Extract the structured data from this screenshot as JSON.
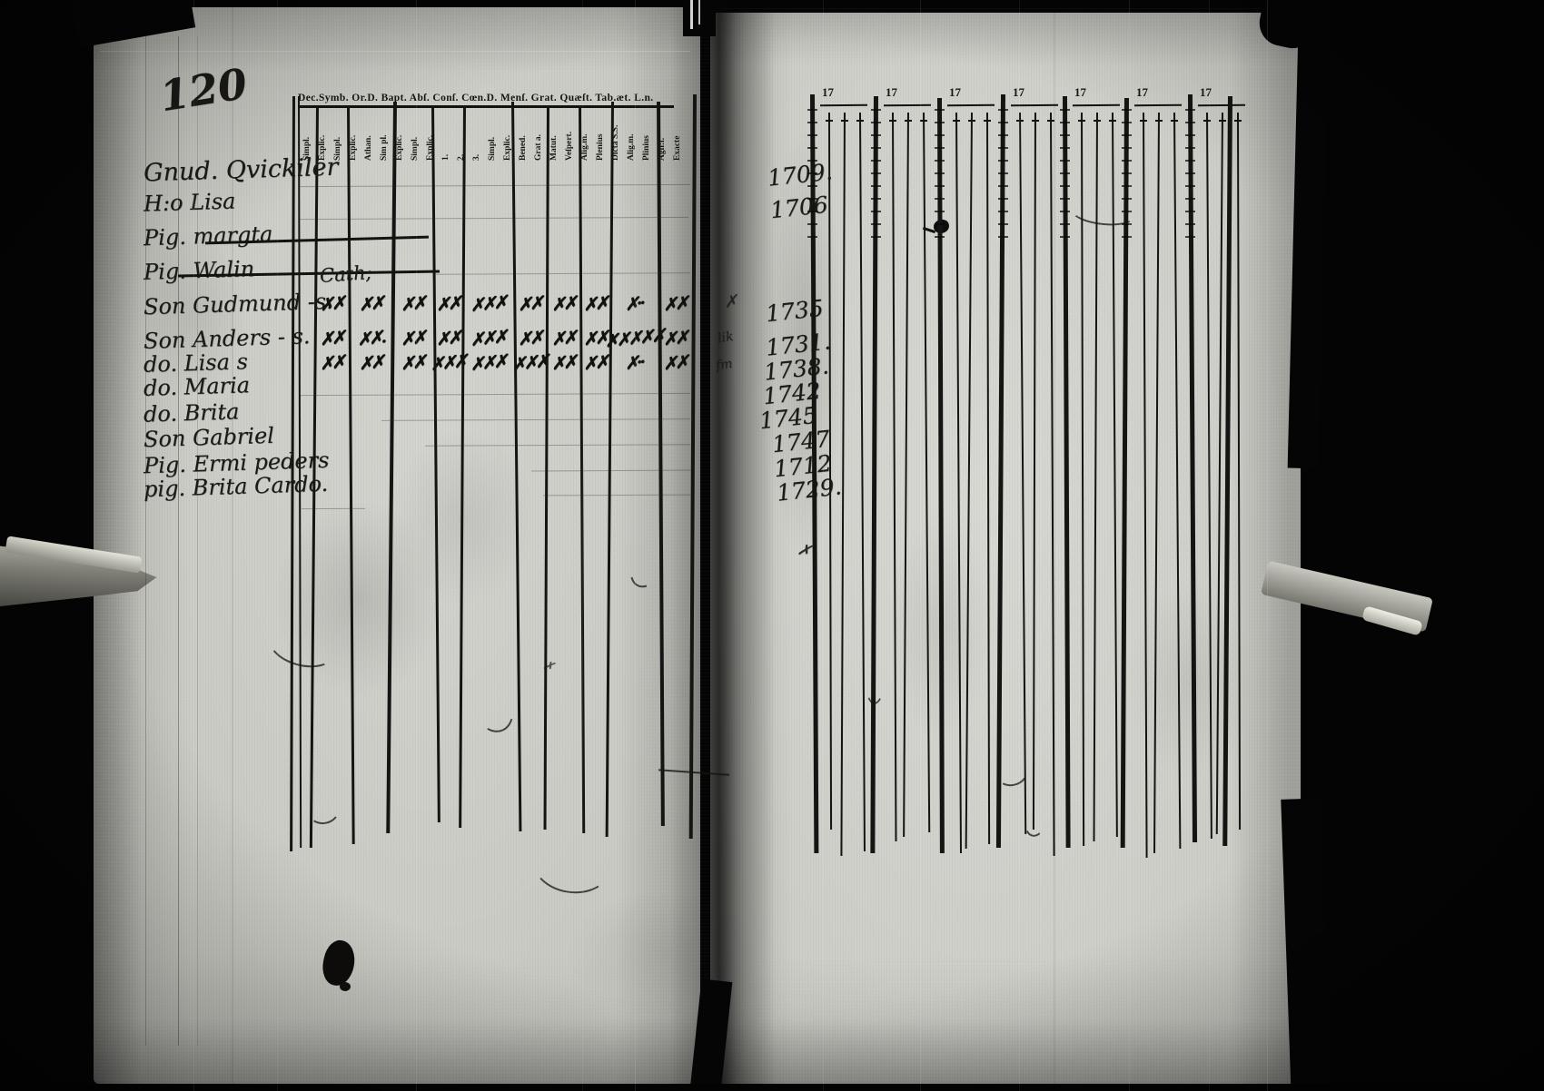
{
  "page_number": "120",
  "left_page": {
    "header_line": "Dec.Symb. Or.D. Bapt. Abſ. Conſ. Cœn.D. Menſ. Grat. Quæſt. Tab.æt. L.n.",
    "header_subs": [
      "Simpl.",
      "Explic.",
      "Simpl.",
      "Explic.",
      "Athan.",
      "Sim pl.",
      "Explic.",
      "Simpl.",
      "Explic.",
      "1.",
      "2.",
      "3.",
      "Simpl.",
      "Explic.",
      "Bened.",
      "Grat a.",
      "Matut.",
      "Veſpert.",
      "Alig.m.",
      "Plenius",
      "Dicta S.S.",
      "Alig.m.",
      "Plinius",
      "Agn:l.",
      "Exacte"
    ],
    "rows": [
      {
        "name": "Gnud. Qvickiler",
        "year": "1709.",
        "struck": false
      },
      {
        "name": "H:o  Lisa",
        "year": "1706",
        "struck": false
      },
      {
        "name": "Pig.  margta",
        "year": "",
        "struck": true
      },
      {
        "name": "Pig.  Walin",
        "year": "",
        "struck": true,
        "note": "Cath;"
      },
      {
        "name": "Son  Gudmund -s.",
        "year": "1735",
        "struck": false,
        "marks": [
          "✗✗",
          "✗✗",
          "✗✗",
          "✗✗",
          "✗✗✗",
          "✗✗",
          "✗✗",
          "✗✗",
          "✗··",
          "✗✗"
        ],
        "tail": "✗"
      },
      {
        "name": "Son  Anders - s.",
        "year": "1731.",
        "struck": false,
        "marks": [
          "✗✗",
          "✗✗.",
          "✗✗",
          "✗✗",
          "✗✗✗",
          "✗✗",
          "✗✗",
          "✗✗",
          "✗✗✗✗✗",
          "✗✗"
        ],
        "tail": "lik"
      },
      {
        "name": "do.  Lisa   s",
        "year": "1738.",
        "struck": false,
        "marks": [
          "✗✗",
          "✗✗",
          "✗✗",
          "✗✗✗",
          "✗✗✗",
          "✗✗✗",
          "✗✗",
          "✗✗",
          "✗··",
          "✗✗"
        ],
        "tail": "fm"
      },
      {
        "name": "do.  Maria",
        "year": "1742",
        "struck": false
      },
      {
        "name": "do.  Brita",
        "year": "1745",
        "struck": false
      },
      {
        "name": "Son  Gabriel",
        "year": "1747",
        "struck": false
      },
      {
        "name": "Pig.  Ermi peders",
        "year": "1712",
        "struck": false
      },
      {
        "name": "pig.  Brita Cardo.",
        "year": "1729.",
        "struck": false
      }
    ]
  },
  "right_page": {
    "column_year_prefix": "17",
    "group_count": 7
  },
  "colors": {
    "paper": "#c9c9c3",
    "ink": "#141412",
    "film": "#050505"
  }
}
